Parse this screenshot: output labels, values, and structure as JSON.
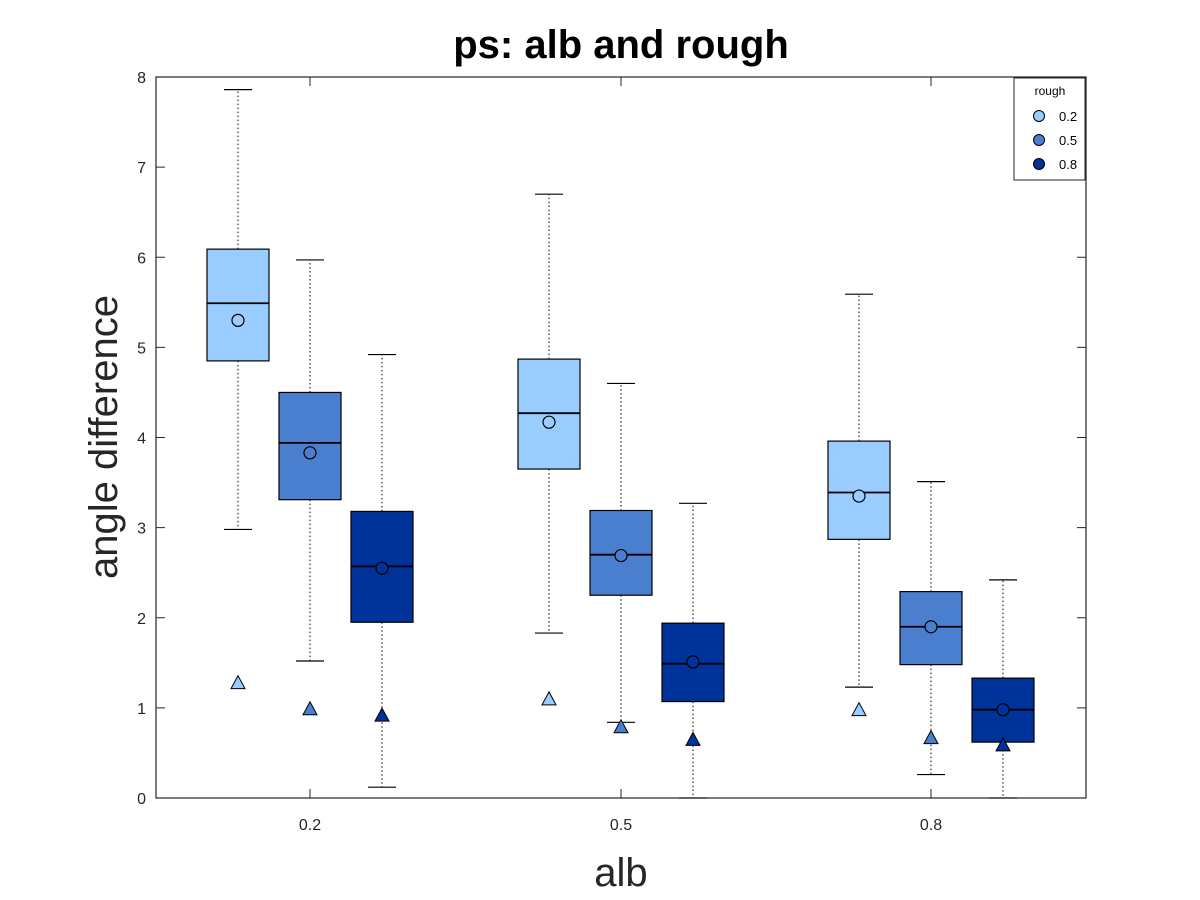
{
  "chart_data": {
    "type": "box",
    "title": "ps: alb and rough",
    "xlabel": "alb",
    "ylabel": "angle difference",
    "ylim": [
      0,
      8
    ],
    "yticks": [
      "0",
      "1",
      "2",
      "3",
      "4",
      "5",
      "6",
      "7",
      "8"
    ],
    "categories": [
      "0.2",
      "0.5",
      "0.8"
    ],
    "legend": {
      "title": "rough",
      "position": "top-right"
    },
    "series": [
      {
        "name": "0.2",
        "color": "#99CCFF",
        "boxes": [
          {
            "whisker_low": 2.98,
            "q1": 4.85,
            "median": 5.49,
            "q3": 6.09,
            "whisker_high": 7.86,
            "mean": 5.3,
            "min_marker": 1.28
          },
          {
            "whisker_low": 1.83,
            "q1": 3.65,
            "median": 4.27,
            "q3": 4.87,
            "whisker_high": 6.7,
            "mean": 4.17,
            "min_marker": 1.1
          },
          {
            "whisker_low": 1.23,
            "q1": 2.87,
            "median": 3.39,
            "q3": 3.96,
            "whisker_high": 5.59,
            "mean": 3.35,
            "min_marker": 0.98
          }
        ]
      },
      {
        "name": "0.5",
        "color": "#4A7FCF",
        "boxes": [
          {
            "whisker_low": 1.52,
            "q1": 3.31,
            "median": 3.94,
            "q3": 4.5,
            "whisker_high": 5.97,
            "mean": 3.83,
            "min_marker": 0.99
          },
          {
            "whisker_low": 0.84,
            "q1": 2.25,
            "median": 2.7,
            "q3": 3.19,
            "whisker_high": 4.6,
            "mean": 2.69,
            "min_marker": 0.79
          },
          {
            "whisker_low": 0.26,
            "q1": 1.48,
            "median": 1.9,
            "q3": 2.29,
            "whisker_high": 3.51,
            "mean": 1.9,
            "min_marker": 0.67
          }
        ]
      },
      {
        "name": "0.8",
        "color": "#003399",
        "boxes": [
          {
            "whisker_low": 0.12,
            "q1": 1.95,
            "median": 2.57,
            "q3": 3.18,
            "whisker_high": 4.92,
            "mean": 2.55,
            "min_marker": 0.92
          },
          {
            "whisker_low": 0.0,
            "q1": 1.07,
            "median": 1.49,
            "q3": 1.94,
            "whisker_high": 3.27,
            "mean": 1.51,
            "min_marker": 0.65
          },
          {
            "whisker_low": 0.0,
            "q1": 0.62,
            "median": 0.98,
            "q3": 1.33,
            "whisker_high": 2.42,
            "mean": 0.98,
            "min_marker": 0.59
          }
        ]
      }
    ]
  }
}
